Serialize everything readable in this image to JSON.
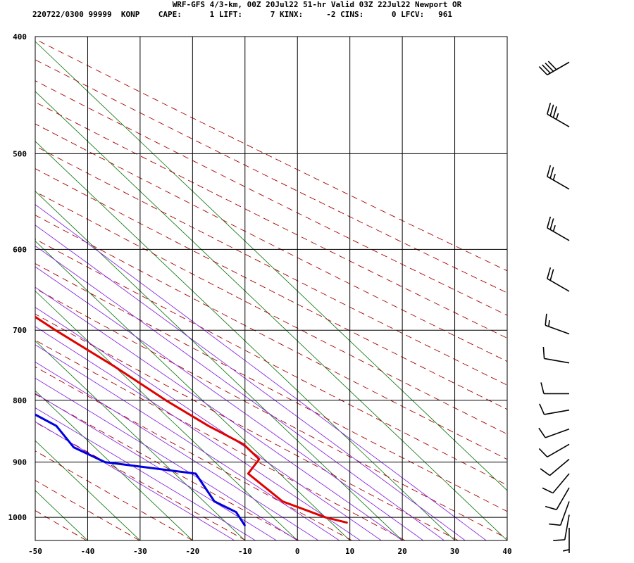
{
  "header": {
    "line1": "WRF-GFS 4/3-km, 00Z 20Jul22 51-hr Valid 03Z 22Jul22 Newport OR",
    "line2": "220722/0300 99999  KONP    CAPE:      1 LIFT:      7 KINX:     -2 CINS:      0 LFCV:   961"
  },
  "colors": {
    "temperature": "#e00000",
    "dewpoint": "#0000e0",
    "dry_adiabat": "#aa0000",
    "moist_adiabat": "#8a2be2",
    "isotherm": "#007000",
    "grid": "#000000"
  },
  "chart_data": {
    "type": "line",
    "title": "",
    "plot_kind": "skew-T log-p sounding",
    "x_axis": {
      "label": "",
      "ticks": [
        -50,
        -40,
        -30,
        -20,
        -10,
        0,
        10,
        20,
        30,
        40
      ],
      "range": [
        -50,
        40
      ]
    },
    "y_axis": {
      "label": "",
      "scale": "log",
      "ticks": [
        400,
        500,
        600,
        700,
        800,
        900,
        1000
      ],
      "range": [
        400,
        1045
      ]
    },
    "grid": true,
    "series": [
      {
        "key": "temperature",
        "points": [
          [
            425,
            -23
          ],
          [
            475,
            -19
          ],
          [
            500,
            -17
          ],
          [
            550,
            -14
          ],
          [
            600,
            -11
          ],
          [
            650,
            -7.5
          ],
          [
            700,
            -4
          ],
          [
            750,
            0
          ],
          [
            800,
            3
          ],
          [
            840,
            6
          ],
          [
            870,
            9
          ],
          [
            895,
            9
          ],
          [
            920,
            4
          ],
          [
            970,
            5
          ],
          [
            1000,
            10
          ],
          [
            1010,
            13
          ]
        ]
      },
      {
        "key": "dewpoint",
        "points": [
          [
            425,
            -41
          ],
          [
            475,
            -38
          ],
          [
            500,
            -38
          ],
          [
            550,
            -39
          ],
          [
            590,
            -43
          ],
          [
            640,
            -44
          ],
          [
            690,
            -46
          ],
          [
            740,
            -38
          ],
          [
            800,
            -27
          ],
          [
            840,
            -23
          ],
          [
            875,
            -24
          ],
          [
            900,
            -21
          ],
          [
            920,
            -6
          ],
          [
            970,
            -8
          ],
          [
            990,
            -6
          ],
          [
            1015,
            -7
          ]
        ]
      }
    ],
    "wind_barbs": [
      {
        "p": 420,
        "dir": 240,
        "speed": 40
      },
      {
        "p": 475,
        "dir": 300,
        "speed": 35
      },
      {
        "p": 535,
        "dir": 300,
        "speed": 25
      },
      {
        "p": 590,
        "dir": 300,
        "speed": 25
      },
      {
        "p": 650,
        "dir": 300,
        "speed": 20
      },
      {
        "p": 705,
        "dir": 290,
        "speed": 15
      },
      {
        "p": 745,
        "dir": 280,
        "speed": 10
      },
      {
        "p": 790,
        "dir": 270,
        "speed": 10
      },
      {
        "p": 815,
        "dir": 260,
        "speed": 10
      },
      {
        "p": 845,
        "dir": 250,
        "speed": 10
      },
      {
        "p": 870,
        "dir": 240,
        "speed": 10
      },
      {
        "p": 895,
        "dir": 230,
        "speed": 10
      },
      {
        "p": 920,
        "dir": 220,
        "speed": 10
      },
      {
        "p": 945,
        "dir": 210,
        "speed": 10
      },
      {
        "p": 970,
        "dir": 200,
        "speed": 10
      },
      {
        "p": 995,
        "dir": 190,
        "speed": 10
      },
      {
        "p": 1020,
        "dir": 180,
        "speed": 5
      }
    ]
  }
}
